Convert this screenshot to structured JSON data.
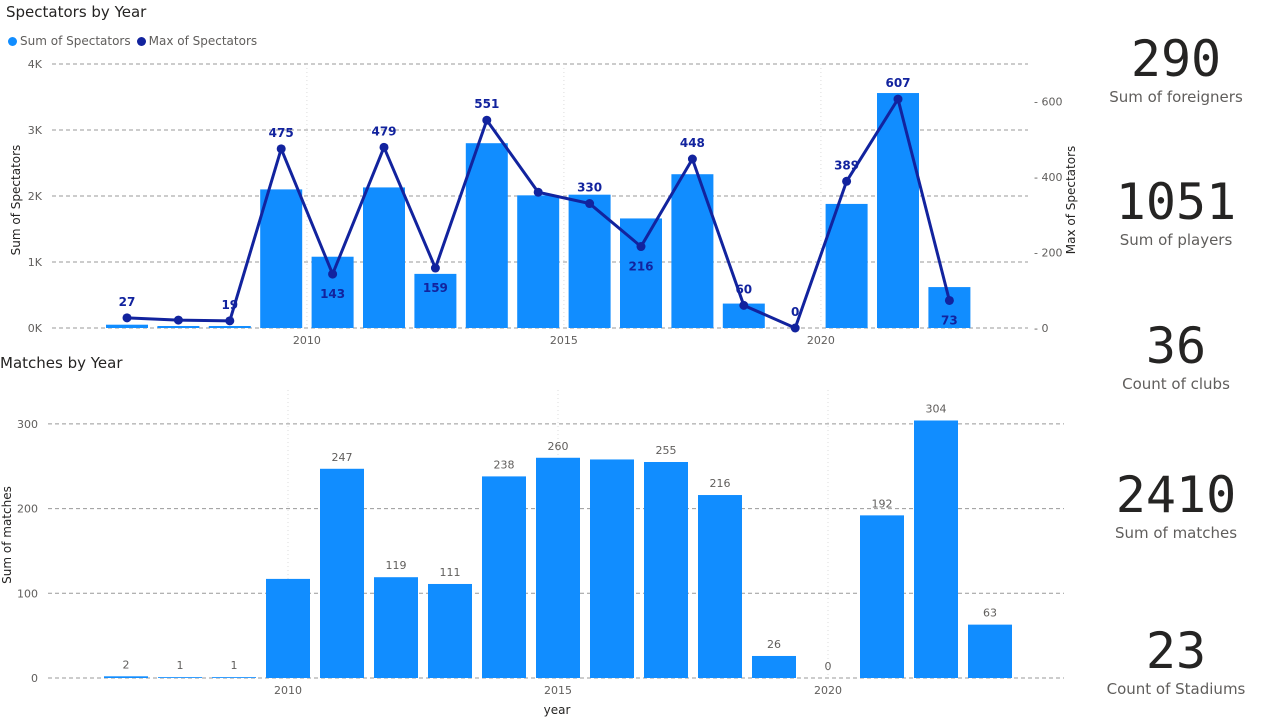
{
  "titles": {
    "top": "Spectators by Year",
    "bottom": "Matches by Year"
  },
  "legend": {
    "sum": "Sum of Spectators",
    "max": "Max of Spectators"
  },
  "colors": {
    "bar": "#118DFF",
    "line": "#12239E",
    "grid": "#999999",
    "text": "#605E5C"
  },
  "kpis": [
    {
      "value": "290",
      "label": "Sum of foreigners"
    },
    {
      "value": "1051",
      "label": "Sum of players"
    },
    {
      "value": "36",
      "label": "Count of clubs"
    },
    {
      "value": "2410",
      "label": "Sum of matches"
    },
    {
      "value": "23",
      "label": "Count of Stadiums"
    }
  ],
  "chart_data": [
    {
      "type": "bar",
      "title": "Spectators by Year",
      "xlabel": "",
      "ylabel": "Sum of Spectators",
      "y2label": "Max of Spectators",
      "x": [
        2007,
        2008,
        2009,
        2010,
        2011,
        2012,
        2013,
        2014,
        2015,
        2016,
        2017,
        2018,
        2019,
        2020,
        2021,
        2022,
        2023
      ],
      "x_ticks": [
        2010,
        2015,
        2020
      ],
      "y_ticks": [
        "0K",
        "1K",
        "2K",
        "3K",
        "4K"
      ],
      "y2_ticks": [
        "0",
        "200",
        "400",
        "600"
      ],
      "ylim": [
        0,
        4000
      ],
      "y2lim": [
        0,
        700
      ],
      "legend_position": "top-left",
      "grid": true,
      "series": [
        {
          "name": "Sum of Spectators",
          "type": "bar",
          "values": [
            50,
            30,
            30,
            2100,
            1080,
            2130,
            820,
            2800,
            2010,
            2020,
            1660,
            2330,
            370,
            0,
            1880,
            3560,
            620
          ]
        },
        {
          "name": "Max of Spectators",
          "type": "line",
          "axis": "right",
          "values": [
            27,
            21,
            19,
            475,
            143,
            479,
            159,
            551,
            360,
            330,
            216,
            448,
            60,
            0,
            389,
            607,
            73
          ],
          "labels": [
            "27",
            "",
            "19",
            "475",
            "143",
            "479",
            "159",
            "551",
            "",
            "330",
            "216",
            "448",
            "60",
            "0",
            "389",
            "607",
            "73"
          ]
        }
      ]
    },
    {
      "type": "bar",
      "title": "Matches by Year",
      "xlabel": "year",
      "ylabel": "Sum of matches",
      "x": [
        2007,
        2008,
        2009,
        2010,
        2011,
        2012,
        2013,
        2014,
        2015,
        2016,
        2017,
        2018,
        2019,
        2020,
        2021,
        2022,
        2023
      ],
      "x_ticks": [
        2010,
        2015,
        2020
      ],
      "y_ticks": [
        "0",
        "100",
        "200",
        "300"
      ],
      "ylim": [
        0,
        340
      ],
      "grid": true,
      "series": [
        {
          "name": "Sum of matches",
          "values": [
            2,
            1,
            1,
            117,
            247,
            119,
            111,
            238,
            260,
            258,
            255,
            216,
            26,
            0,
            192,
            304,
            63
          ],
          "labels": [
            "2",
            "1",
            "1",
            "",
            "247",
            "119",
            "111",
            "238",
            "260",
            "",
            "255",
            "216",
            "26",
            "0",
            "192",
            "304",
            "63"
          ]
        }
      ]
    }
  ]
}
